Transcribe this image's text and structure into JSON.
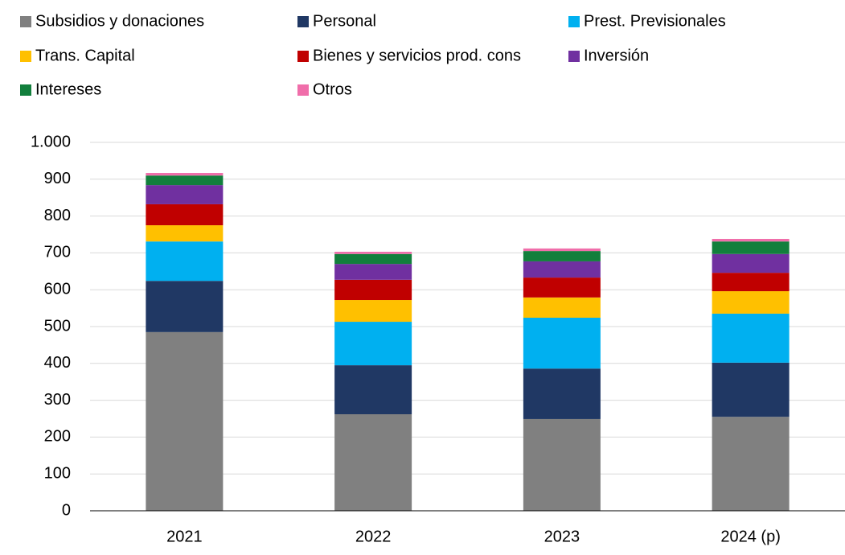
{
  "chart_data": {
    "type": "stacked_bar",
    "categories": [
      "2021",
      "2022",
      "2023",
      "2024 (p)"
    ],
    "series": [
      {
        "name": "Subsidios y donaciones",
        "color": "#808080",
        "values": [
          485,
          262,
          249,
          255
        ]
      },
      {
        "name": "Personal",
        "color": "#203864",
        "values": [
          139,
          133,
          137,
          147
        ]
      },
      {
        "name": "Prest. Previsionales",
        "color": "#00b0f0",
        "values": [
          107,
          118,
          138,
          133
        ]
      },
      {
        "name": "Trans. Capital",
        "color": "#ffc000",
        "values": [
          44,
          59,
          55,
          61
        ]
      },
      {
        "name": "Bienes y servicios prod. cons",
        "color": "#c00000",
        "values": [
          57,
          55,
          54,
          50
        ]
      },
      {
        "name": "Inversión",
        "color": "#7030a0",
        "values": [
          52,
          43,
          44,
          51
        ]
      },
      {
        "name": "Intereses",
        "color": "#127f3c",
        "values": [
          26,
          27,
          28,
          34
        ]
      },
      {
        "name": "Otros",
        "color": "#f06eaa",
        "values": [
          7,
          6,
          7,
          7
        ]
      }
    ],
    "ylim": [
      0,
      1000
    ],
    "yticks": [
      0,
      100,
      200,
      300,
      400,
      500,
      600,
      700,
      800,
      900,
      {
        "value": 1000,
        "label": "1.000"
      }
    ],
    "grid": true
  }
}
